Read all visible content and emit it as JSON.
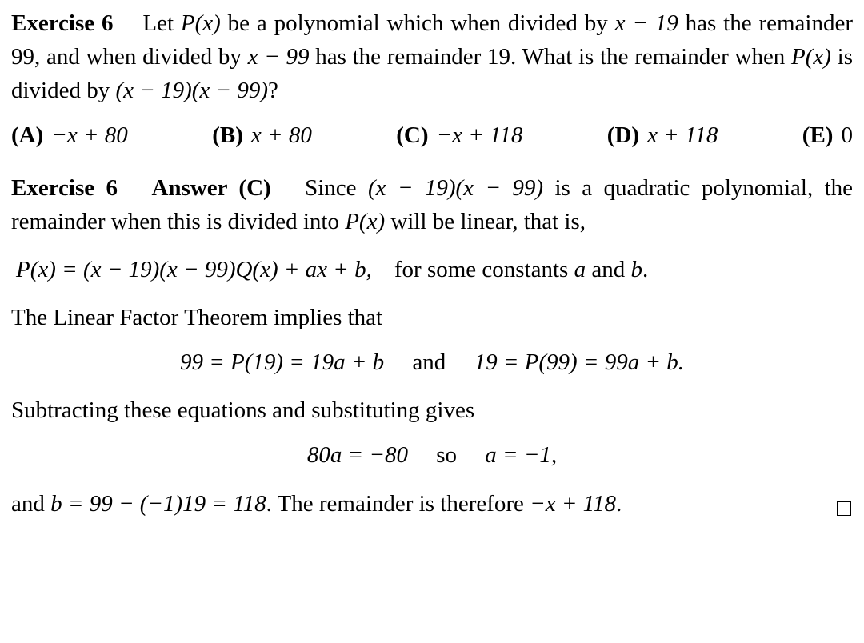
{
  "exercise_label": "Exercise 6",
  "problem": {
    "line1_prefix": "Let ",
    "px": "P(x)",
    "line1_mid": " be a polynomial which when divided by ",
    "div1": "x − 19",
    "line1_tail": " has",
    "line2_a": "the remainder 99, and when divided by ",
    "div2": "x − 99",
    "line2_b": " has the remainder 19. What",
    "line3_a": "is the remainder when ",
    "line3_b": " is divided by ",
    "product": "(x − 19)(x − 99)",
    "qmark": "?"
  },
  "choices": {
    "A": {
      "label": "(A)",
      "val": "−x + 80"
    },
    "B": {
      "label": "(B)",
      "val": "x + 80"
    },
    "C": {
      "label": "(C)",
      "val": "−x + 118"
    },
    "D": {
      "label": "(D)",
      "val": "x + 118"
    },
    "E": {
      "label": "(E)",
      "val": "0"
    }
  },
  "solution": {
    "header_label": "Exercise 6",
    "answer_label": "Answer (C)",
    "s1_a": "Since ",
    "s1_b": " is a quadratic polynomial,",
    "s2": "the remainder when this is divided into ",
    "s2_tail": " will be linear, that is,",
    "eq1_math": "P(x) = (x − 19)(x − 99)Q(x) + ax + b,",
    "eq1_trail": "for some constants ",
    "a_it": "a",
    "and_word": " and ",
    "b_it": "b",
    "period": ".",
    "s3": "The Linear Factor Theorem implies that",
    "eq2_left": "99 = P(19) = 19a + b",
    "eq2_and": "and",
    "eq2_right": "19 = P(99) = 99a + b.",
    "s4": "Subtracting these equations and substituting gives",
    "eq3_left": "80a = −80",
    "eq3_so": "so",
    "eq3_right": "a = −1,",
    "s5_a": "and ",
    "s5_expr": "b = 99 − (−1)19 = 118",
    "s5_b": ". The remainder is therefore ",
    "s5_ans": "−x + 118",
    "s5_c": "."
  }
}
